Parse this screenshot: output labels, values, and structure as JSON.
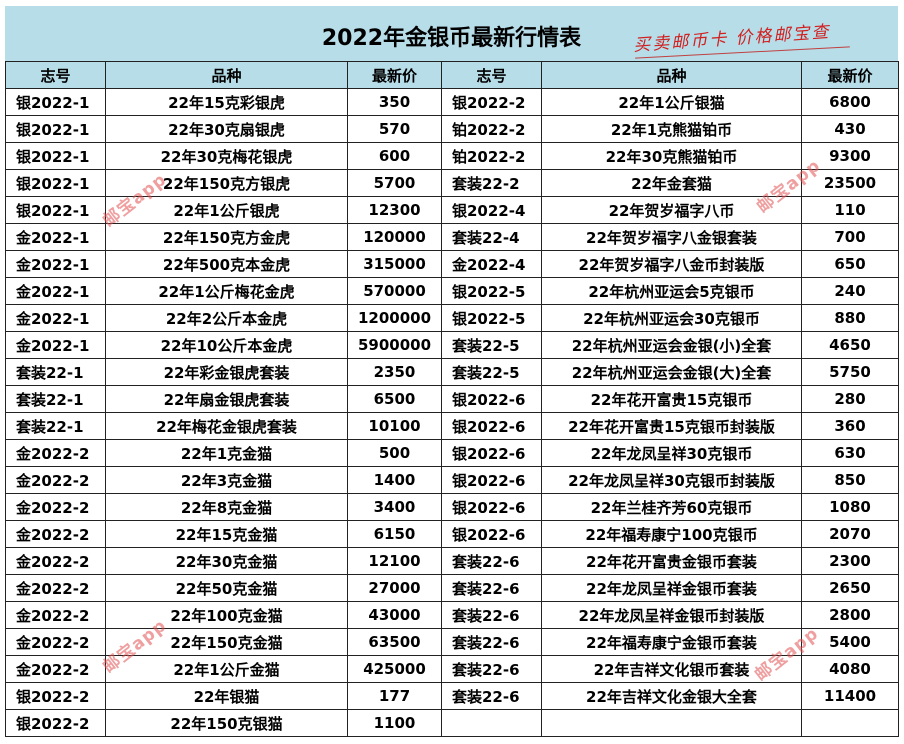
{
  "title": "2022年金银币最新行情表",
  "slogan": "买卖邮币卡 价格邮宝查",
  "watermark": "邮宝app",
  "headers": {
    "code": "志号",
    "name": "品种",
    "price": "最新价"
  },
  "left_rows": [
    {
      "code": "银2022-1",
      "name": "22年15克彩银虎",
      "price": "350"
    },
    {
      "code": "银2022-1",
      "name": "22年30克扇银虎",
      "price": "570"
    },
    {
      "code": "银2022-1",
      "name": "22年30克梅花银虎",
      "price": "600"
    },
    {
      "code": "银2022-1",
      "name": "22年150克方银虎",
      "price": "5700"
    },
    {
      "code": "银2022-1",
      "name": "22年1公斤银虎",
      "price": "12300"
    },
    {
      "code": "金2022-1",
      "name": "22年150克方金虎",
      "price": "120000"
    },
    {
      "code": "金2022-1",
      "name": "22年500克本金虎",
      "price": "315000"
    },
    {
      "code": "金2022-1",
      "name": "22年1公斤梅花金虎",
      "price": "570000"
    },
    {
      "code": "金2022-1",
      "name": "22年2公斤本金虎",
      "price": "1200000"
    },
    {
      "code": "金2022-1",
      "name": "22年10公斤本金虎",
      "price": "5900000"
    },
    {
      "code": "套装22-1",
      "name": "22年彩金银虎套装",
      "price": "2350"
    },
    {
      "code": "套装22-1",
      "name": "22年扇金银虎套装",
      "price": "6500"
    },
    {
      "code": "套装22-1",
      "name": "22年梅花金银虎套装",
      "price": "10100"
    },
    {
      "code": "金2022-2",
      "name": "22年1克金猫",
      "price": "500"
    },
    {
      "code": "金2022-2",
      "name": "22年3克金猫",
      "price": "1400"
    },
    {
      "code": "金2022-2",
      "name": "22年8克金猫",
      "price": "3400"
    },
    {
      "code": "金2022-2",
      "name": "22年15克金猫",
      "price": "6150"
    },
    {
      "code": "金2022-2",
      "name": "22年30克金猫",
      "price": "12100"
    },
    {
      "code": "金2022-2",
      "name": "22年50克金猫",
      "price": "27000"
    },
    {
      "code": "金2022-2",
      "name": "22年100克金猫",
      "price": "43000"
    },
    {
      "code": "金2022-2",
      "name": "22年150克金猫",
      "price": "63500"
    },
    {
      "code": "金2022-2",
      "name": "22年1公斤金猫",
      "price": "425000"
    },
    {
      "code": "银2022-2",
      "name": "22年银猫",
      "price": "177"
    },
    {
      "code": "银2022-2",
      "name": "22年150克银猫",
      "price": "1100"
    }
  ],
  "right_rows": [
    {
      "code": "银2022-2",
      "name": "22年1公斤银猫",
      "price": "6800"
    },
    {
      "code": "铂2022-2",
      "name": "22年1克熊猫铂币",
      "price": "430"
    },
    {
      "code": "铂2022-2",
      "name": "22年30克熊猫铂币",
      "price": "9300"
    },
    {
      "code": "套装22-2",
      "name": "22年金套猫",
      "price": "23500"
    },
    {
      "code": "银2022-4",
      "name": "22年贺岁福字八币",
      "price": "110"
    },
    {
      "code": "套装22-4",
      "name": "22年贺岁福字八金银套装",
      "price": "700"
    },
    {
      "code": "金2022-4",
      "name": "22年贺岁福字八金币封装版",
      "price": "650"
    },
    {
      "code": "银2022-5",
      "name": "22年杭州亚运会5克银币",
      "price": "240"
    },
    {
      "code": "银2022-5",
      "name": "22年杭州亚运会30克银币",
      "price": "880"
    },
    {
      "code": "套装22-5",
      "name": "22年杭州亚运会金银(小)全套",
      "price": "4650"
    },
    {
      "code": "套装22-5",
      "name": "22年杭州亚运会金银(大)全套",
      "price": "5750"
    },
    {
      "code": "银2022-6",
      "name": "22年花开富贵15克银币",
      "price": "280"
    },
    {
      "code": "银2022-6",
      "name": "22年花开富贵15克银币封装版",
      "price": "360"
    },
    {
      "code": "银2022-6",
      "name": "22年龙凤呈祥30克银币",
      "price": "630"
    },
    {
      "code": "银2022-6",
      "name": "22年龙凤呈祥30克银币封装版",
      "price": "850"
    },
    {
      "code": "银2022-6",
      "name": "22年兰桂齐芳60克银币",
      "price": "1080"
    },
    {
      "code": "银2022-6",
      "name": "22年福寿康宁100克银币",
      "price": "2070"
    },
    {
      "code": "套装22-6",
      "name": "22年花开富贵金银币套装",
      "price": "2300"
    },
    {
      "code": "套装22-6",
      "name": "22年龙凤呈祥金银币套装",
      "price": "2650"
    },
    {
      "code": "套装22-6",
      "name": "22年龙凤呈祥金银币封装版",
      "price": "2800"
    },
    {
      "code": "套装22-6",
      "name": "22年福寿康宁金银币套装",
      "price": "5400"
    },
    {
      "code": "套装22-6",
      "name": "22年吉祥文化银币套装",
      "price": "4080"
    },
    {
      "code": "套装22-6",
      "name": "22年吉祥文化金银大全套",
      "price": "11400"
    }
  ]
}
